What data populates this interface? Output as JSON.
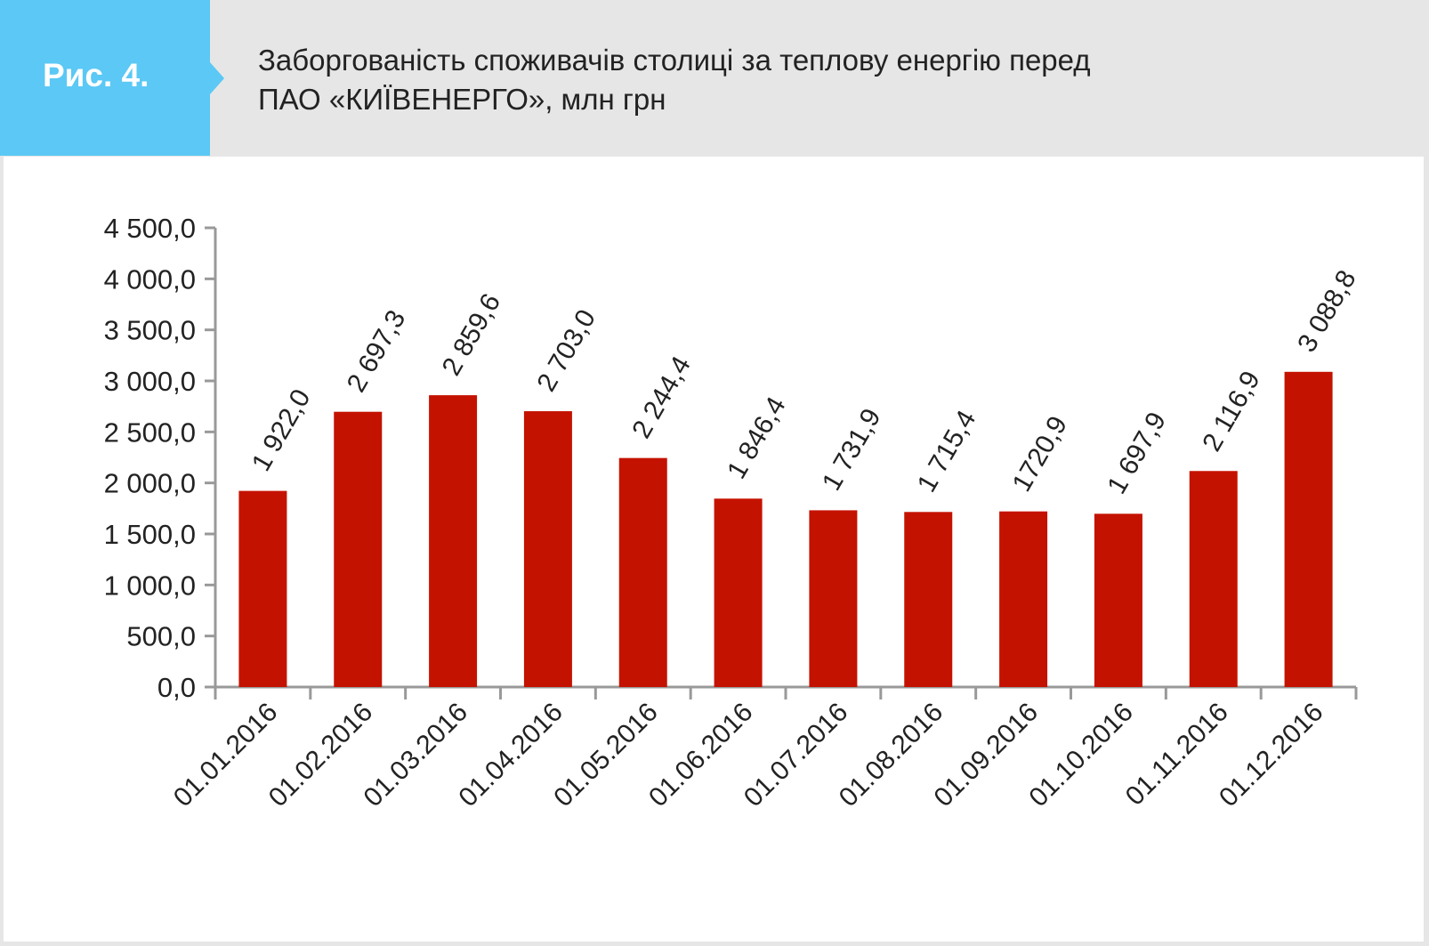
{
  "header": {
    "figure_label": "Рис. 4.",
    "title_line1": "Заборгованість споживачів столиці за теплову енергію перед",
    "title_line2": "ПАО «КИЇВЕНЕРГО», млн грн"
  },
  "colors": {
    "badge": "#5bc8f5",
    "bar": "#c41200",
    "axis": "#999999",
    "background": "#e6e6e6"
  },
  "chart_data": {
    "type": "bar",
    "title": "Заборгованість споживачів столиці за теплову енергію перед ПАО «КИЇВЕНЕРГО», млн грн",
    "categories": [
      "01.01.2016",
      "01.02.2016",
      "01.03.2016",
      "01.04.2016",
      "01.05.2016",
      "01.06.2016",
      "01.07.2016",
      "01.08.2016",
      "01.09.2016",
      "01.10.2016",
      "01.11.2016",
      "01.12.2016"
    ],
    "values": [
      1922.0,
      2697.3,
      2859.6,
      2703.0,
      2244.4,
      1846.4,
      1731.9,
      1715.4,
      1720.9,
      1697.9,
      2116.9,
      3088.8
    ],
    "value_labels": [
      "1 922,0",
      "2 697,3",
      "2 859,6",
      "2 703,0",
      "2 244,4",
      "1 846,4",
      "1 731,9",
      "1 715,4",
      "1720,9",
      "1 697,9",
      "2 116,9",
      "3 088,8"
    ],
    "ylim": [
      0,
      4500
    ],
    "yticks": [
      0,
      500,
      1000,
      1500,
      2000,
      2500,
      3000,
      3500,
      4000,
      4500
    ],
    "ytick_labels": [
      "0,0",
      "500,0",
      "1 000,0",
      "1 500,0",
      "2 000,0",
      "2 500,0",
      "3 000,0",
      "3 500,0",
      "4 000,0",
      "4 500,0"
    ],
    "xlabel": "",
    "ylabel": "",
    "grid": false,
    "legend": "none"
  }
}
